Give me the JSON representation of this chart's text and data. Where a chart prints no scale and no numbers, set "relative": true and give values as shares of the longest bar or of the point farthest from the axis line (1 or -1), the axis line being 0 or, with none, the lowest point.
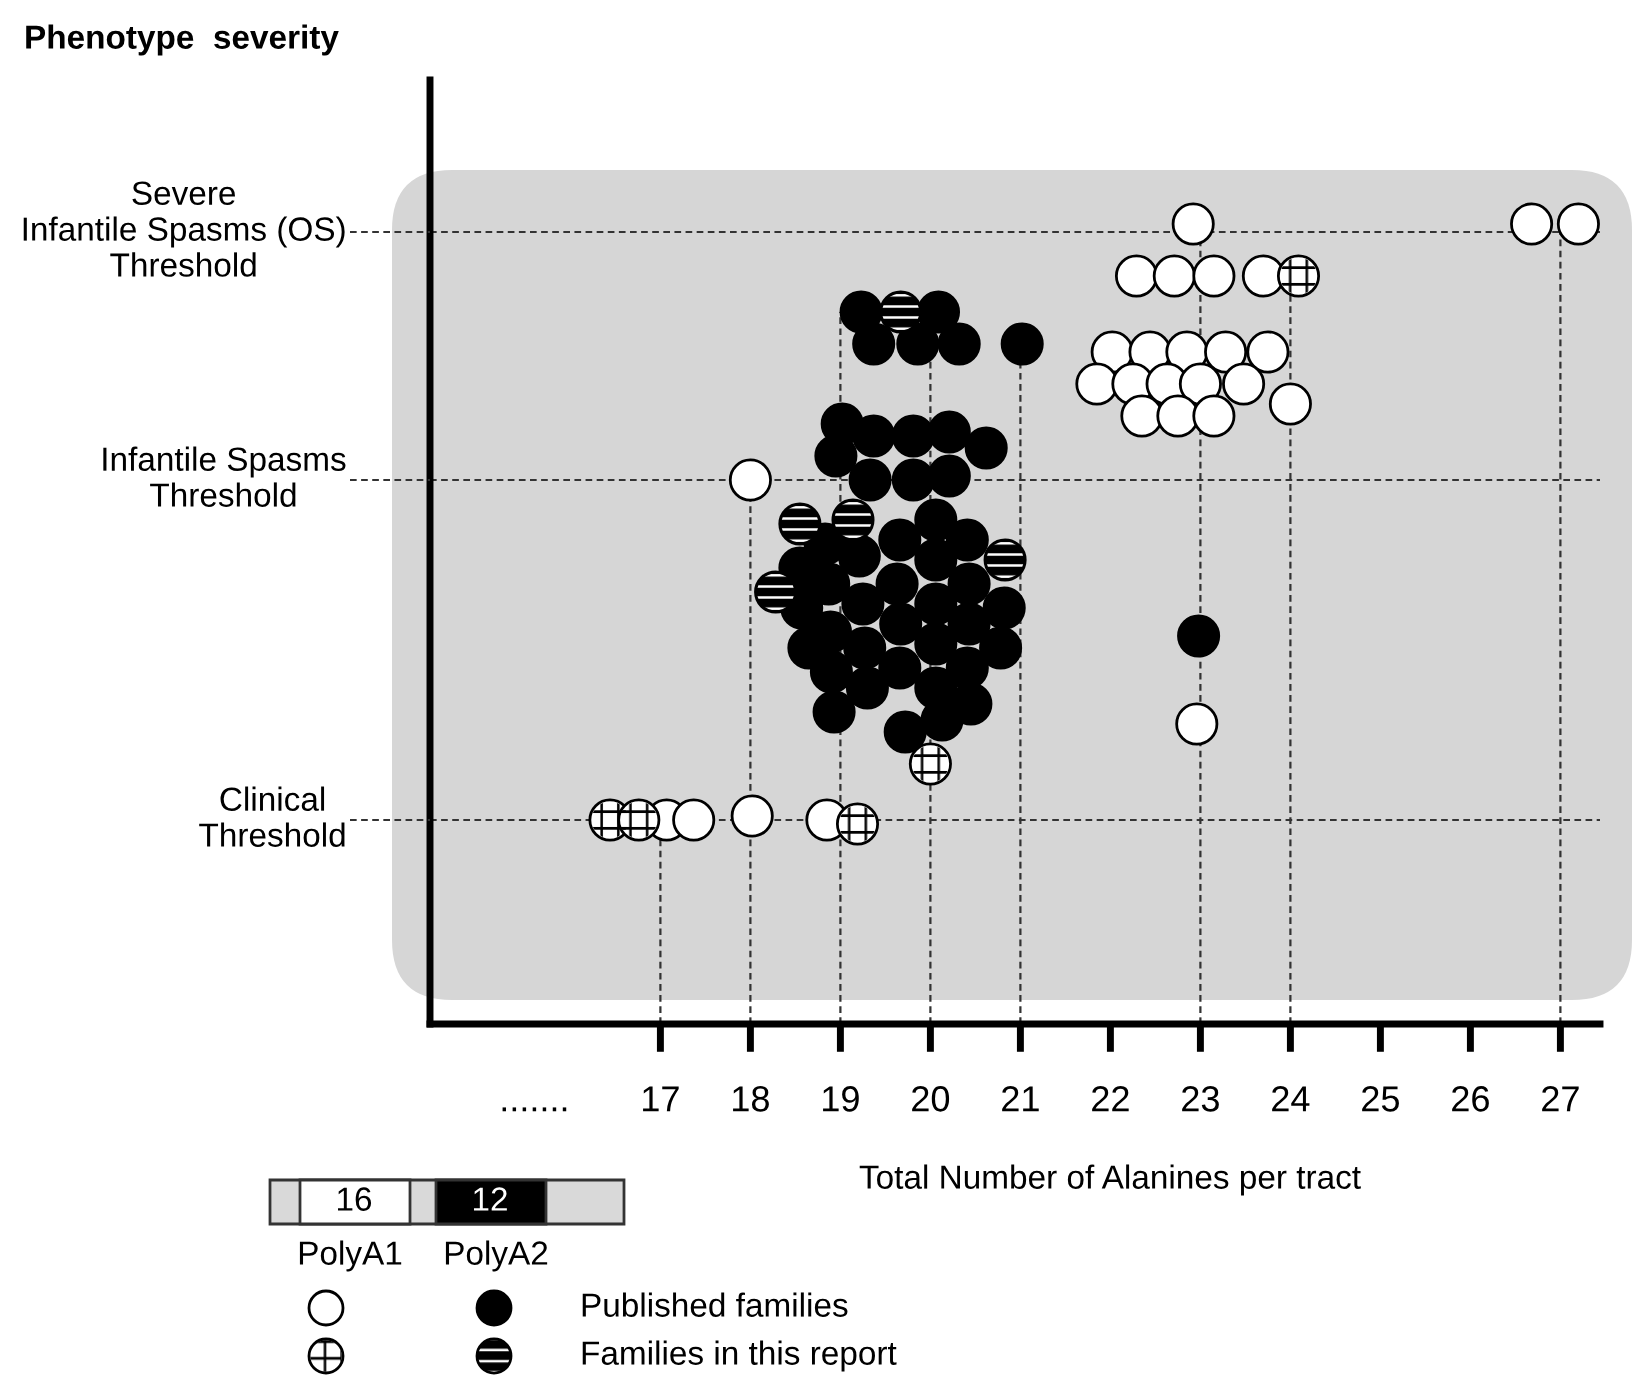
{
  "chart_data": {
    "type": "scatter",
    "relative": true,
    "xlabel": "Total Number of Alanines per tract",
    "xlim": [
      14.44,
      27.44
    ],
    "xticks": [
      {
        "value": 15.6,
        "label": "......."
      },
      17,
      18,
      19,
      20,
      21,
      22,
      23,
      24,
      25,
      26,
      27
    ],
    "marker": "circle",
    "grid": false,
    "series": [
      {
        "color": "#ffffff",
        "x": [
          22.92,
          26.68,
          27.2,
          22.29,
          22.71,
          23.15,
          23.7,
          22.02,
          22.44,
          22.85,
          23.28,
          23.75,
          21.85,
          22.25,
          22.63,
          23.0,
          23.48,
          22.35,
          22.75,
          23.15,
          24.0,
          22.96,
          17.07,
          17.37,
          18.02,
          18.85,
          18.0
        ],
        "values": [
          1.0,
          1.0,
          1.0,
          0.935,
          0.935,
          0.935,
          0.935,
          0.84,
          0.84,
          0.84,
          0.84,
          0.84,
          0.8,
          0.8,
          0.8,
          0.8,
          0.8,
          0.76,
          0.76,
          0.76,
          0.775,
          0.375,
          0.255,
          0.255,
          0.26,
          0.255,
          0.68
        ]
      },
      {
        "color": "#ffffff",
        "x": [
          24.09,
          16.44,
          16.76,
          19.19,
          20.0
        ],
        "values": [
          0.935,
          0.255,
          0.255,
          0.25,
          0.325
        ]
      },
      {
        "color": "#000000",
        "x": [
          19.23,
          20.09,
          19.37,
          19.86,
          20.32,
          21.02,
          19.02,
          19.37,
          19.81,
          20.21,
          18.95,
          20.62,
          19.33,
          19.81,
          20.21,
          20.06,
          18.83,
          19.66,
          20.41,
          18.55,
          19.21,
          20.06,
          18.87,
          19.63,
          20.43,
          18.57,
          19.25,
          20.06,
          20.82,
          18.89,
          19.67,
          20.43,
          18.65,
          19.27,
          20.06,
          20.78,
          18.9,
          19.66,
          20.41,
          19.3,
          20.06,
          18.93,
          20.45,
          19.72,
          20.13,
          22.98
        ],
        "values": [
          0.89,
          0.89,
          0.85,
          0.85,
          0.85,
          0.85,
          0.75,
          0.735,
          0.735,
          0.74,
          0.71,
          0.72,
          0.68,
          0.68,
          0.685,
          0.63,
          0.6,
          0.605,
          0.605,
          0.57,
          0.585,
          0.58,
          0.55,
          0.55,
          0.55,
          0.52,
          0.525,
          0.525,
          0.52,
          0.49,
          0.5,
          0.5,
          0.47,
          0.47,
          0.475,
          0.47,
          0.44,
          0.445,
          0.445,
          0.42,
          0.42,
          0.39,
          0.4,
          0.365,
          0.38,
          0.485
        ]
      },
      {
        "color": "#000000",
        "x": [
          19.67,
          18.55,
          19.14,
          20.83,
          18.28
        ],
        "values": [
          0.89,
          0.625,
          0.63,
          0.58,
          0.54
        ]
      }
    ],
    "ref_lines": [
      {
        "axis": "y",
        "value": 0.99,
        "label": "Severe\nInfantile Spasms (OS)\nThreshold",
        "line_style": "dashed"
      },
      {
        "axis": "y",
        "value": 0.68,
        "label": "Infantile Spasms\nThreshold",
        "line_style": "dashed"
      },
      {
        "axis": "y",
        "value": 0.255,
        "label": "Clinical\nThreshold",
        "line_style": "dashed"
      },
      {
        "axis": "x",
        "value": 17,
        "line_style": "dashed"
      },
      {
        "axis": "x",
        "value": 18,
        "line_style": "dashed"
      },
      {
        "axis": "x",
        "value": 19,
        "line_style": "dashed"
      },
      {
        "axis": "x",
        "value": 20,
        "line_style": "dashed"
      },
      {
        "axis": "x",
        "value": 21,
        "line_style": "dashed"
      },
      {
        "axis": "x",
        "value": 23,
        "line_style": "dashed"
      },
      {
        "axis": "x",
        "value": 24,
        "line_style": "dashed"
      },
      {
        "axis": "x",
        "value": 27,
        "line_style": "dashed"
      }
    ],
    "annotations": [
      "Phenotype  severity",
      "16",
      "12",
      "PolyA1",
      "PolyA2",
      "Published families",
      "Families in this report"
    ]
  }
}
